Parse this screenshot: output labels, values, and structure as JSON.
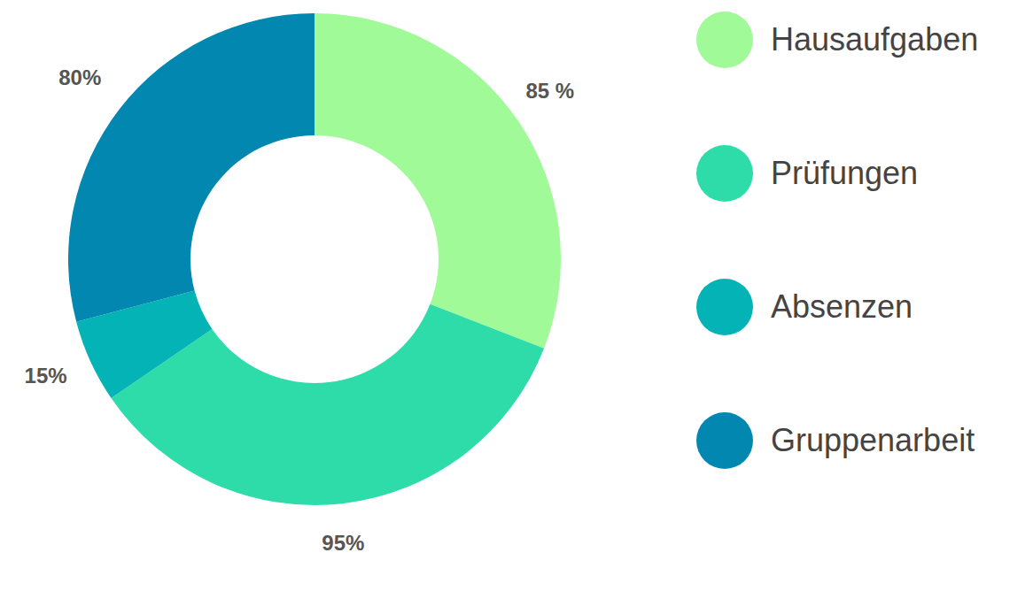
{
  "chart_data": {
    "type": "pie",
    "categories": [
      "Hausaufgaben",
      "Prüfungen",
      "Absenzen",
      "Gruppenarbeit"
    ],
    "values": [
      85,
      95,
      15,
      80
    ],
    "value_labels": [
      "85 %",
      "95%",
      "15%",
      "80%"
    ],
    "colors": [
      "#a0fa98",
      "#2edcaa",
      "#04b3b6",
      "#0288b0"
    ],
    "data_labels": true,
    "legend": "right"
  }
}
